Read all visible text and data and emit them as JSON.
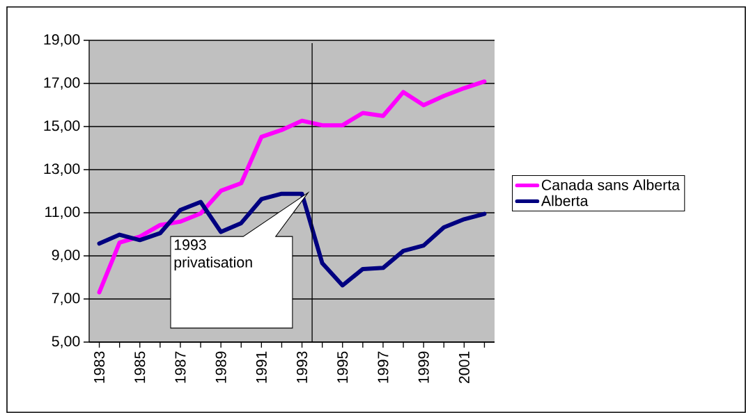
{
  "chart_data": {
    "type": "line",
    "x": [
      1983,
      1984,
      1985,
      1986,
      1987,
      1988,
      1989,
      1990,
      1991,
      1992,
      1993,
      1994,
      1995,
      1996,
      1997,
      1998,
      1999,
      2000,
      2001,
      2002
    ],
    "series": [
      {
        "name": "Canada sans Alberta",
        "color": "#ff00ff",
        "values": [
          7.31,
          9.62,
          9.89,
          10.43,
          10.59,
          10.97,
          12.02,
          12.37,
          14.52,
          14.84,
          15.27,
          15.06,
          15.06,
          15.63,
          15.49,
          16.6,
          15.99,
          16.42,
          16.78,
          17.09
        ]
      },
      {
        "name": "Alberta",
        "color": "#000080",
        "values": [
          9.57,
          9.98,
          9.73,
          10.05,
          11.13,
          11.5,
          10.11,
          10.52,
          11.63,
          11.88,
          11.88,
          8.66,
          7.63,
          8.39,
          8.44,
          9.23,
          9.48,
          10.32,
          10.7,
          10.95
        ]
      }
    ],
    "xlim": [
      1982.5,
      2002.5
    ],
    "xticks": [
      {
        "value": 1983,
        "label": "1983"
      },
      {
        "value": 1984,
        "label": null
      },
      {
        "value": 1985,
        "label": "1985"
      },
      {
        "value": 1986,
        "label": null
      },
      {
        "value": 1987,
        "label": "1987"
      },
      {
        "value": 1988,
        "label": null
      },
      {
        "value": 1989,
        "label": "1989"
      },
      {
        "value": 1990,
        "label": null
      },
      {
        "value": 1991,
        "label": "1991"
      },
      {
        "value": 1992,
        "label": null
      },
      {
        "value": 1993,
        "label": "1993"
      },
      {
        "value": 1994,
        "label": null
      },
      {
        "value": 1995,
        "label": "1995"
      },
      {
        "value": 1996,
        "label": null
      },
      {
        "value": 1997,
        "label": "1997"
      },
      {
        "value": 1998,
        "label": null
      },
      {
        "value": 1999,
        "label": "1999"
      },
      {
        "value": 2000,
        "label": null
      },
      {
        "value": 2001,
        "label": "2001"
      },
      {
        "value": 2002,
        "label": null
      }
    ],
    "ylim": [
      5,
      19
    ],
    "yticks": [
      {
        "value": 5,
        "label": "5,00"
      },
      {
        "value": 7,
        "label": "7,00"
      },
      {
        "value": 9,
        "label": "9,00"
      },
      {
        "value": 11,
        "label": "11,00"
      },
      {
        "value": 13,
        "label": "13,00"
      },
      {
        "value": 15,
        "label": "15,00"
      },
      {
        "value": 17,
        "label": "17,00"
      },
      {
        "value": 19,
        "label": "19,00"
      }
    ],
    "ref_lines": [
      {
        "axis": "x",
        "value": 1993.5,
        "color": "#000000"
      }
    ],
    "annotations": [
      "1993 privatisation"
    ],
    "grid": "y",
    "legend": "right",
    "marker": "none",
    "line_style": "solid"
  }
}
